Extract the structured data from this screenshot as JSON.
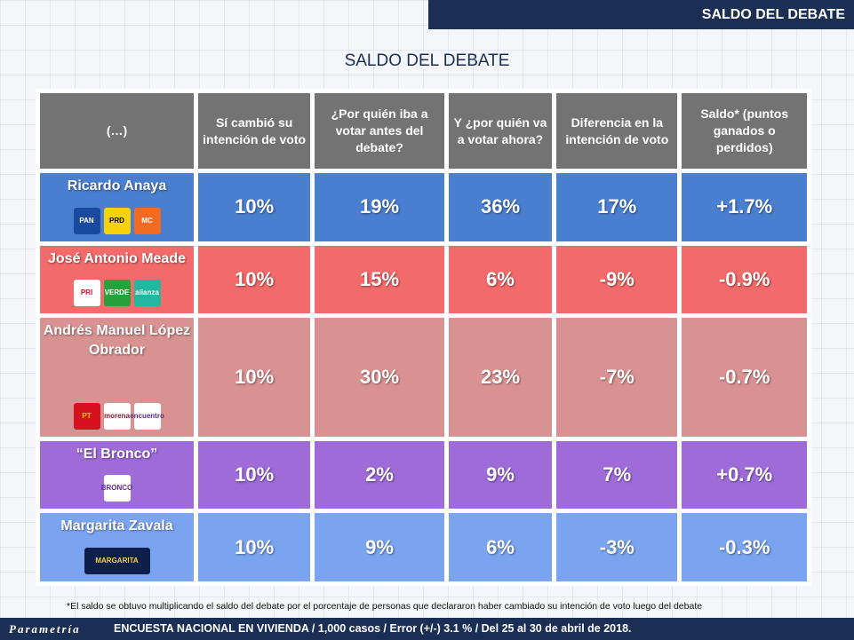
{
  "banner": "SALDO DEL DEBATE",
  "chart_data": {
    "type": "table",
    "title": "SALDO DEL DEBATE",
    "columns": [
      "(…)",
      "Sí cambió su intención de voto",
      "¿Por quién iba a votar antes del debate?",
      "Y ¿por quién va a votar ahora?",
      "Diferencia en la intención de voto",
      "Saldo* (puntos ganados o perdidos)"
    ],
    "rows": [
      {
        "name": "Ricardo Anaya",
        "values": [
          "10%",
          "19%",
          "36%",
          "17%",
          "+1.7%"
        ],
        "color": "#4a7fd0",
        "logos": [
          {
            "label": "PAN",
            "bg": "#1a4aa0",
            "fg": "#fff"
          },
          {
            "label": "PRD",
            "bg": "#f7d10a",
            "fg": "#000"
          },
          {
            "label": "MC",
            "bg": "#f26b21",
            "fg": "#fff"
          }
        ]
      },
      {
        "name": "José Antonio Meade",
        "values": [
          "10%",
          "15%",
          "6%",
          "-9%",
          "-0.9%"
        ],
        "color": "#f26a6a",
        "logos": [
          {
            "label": "PRI",
            "bg": "#fff",
            "fg": "#c8102e"
          },
          {
            "label": "VERDE",
            "bg": "#28a03c",
            "fg": "#fff"
          },
          {
            "label": "alianza",
            "bg": "#22b8a0",
            "fg": "#fff"
          }
        ]
      },
      {
        "name": "Andrés Manuel López Obrador",
        "values": [
          "10%",
          "30%",
          "23%",
          "-7%",
          "-0.7%"
        ],
        "color": "#d99292",
        "logos": [
          {
            "label": "PT",
            "bg": "#d7111f",
            "fg": "#ffd200"
          },
          {
            "label": "morena",
            "bg": "#fff",
            "fg": "#8b1d2c"
          },
          {
            "label": "encuentro",
            "bg": "#fff",
            "fg": "#5a2a82"
          }
        ]
      },
      {
        "name": "“El Bronco”",
        "values": [
          "10%",
          "2%",
          "9%",
          "7%",
          "+0.7%"
        ],
        "color": "#9e6bd9",
        "logos": [
          {
            "label": "BRONCO",
            "bg": "#fff",
            "fg": "#6a2a9a"
          }
        ]
      },
      {
        "name": "Margarita Zavala",
        "values": [
          "10%",
          "9%",
          "6%",
          "-3%",
          "-0.3%"
        ],
        "color": "#7ba4f0",
        "logos": [
          {
            "label": "MARGARITA",
            "bg": "#0d1f4a",
            "fg": "#f2d34a",
            "wide": true
          }
        ]
      }
    ]
  },
  "footnote": "*El saldo se obtuvo multiplicando el saldo del debate por el porcentaje de personas que declararon haber cambiado su intención de voto luego del debate",
  "brand": "Parametría",
  "survey": "ENCUESTA NACIONAL EN VIVIENDA / 1,000 casos / Error (+/-) 3.1 % / Del 25 al 30 de abril de 2018."
}
